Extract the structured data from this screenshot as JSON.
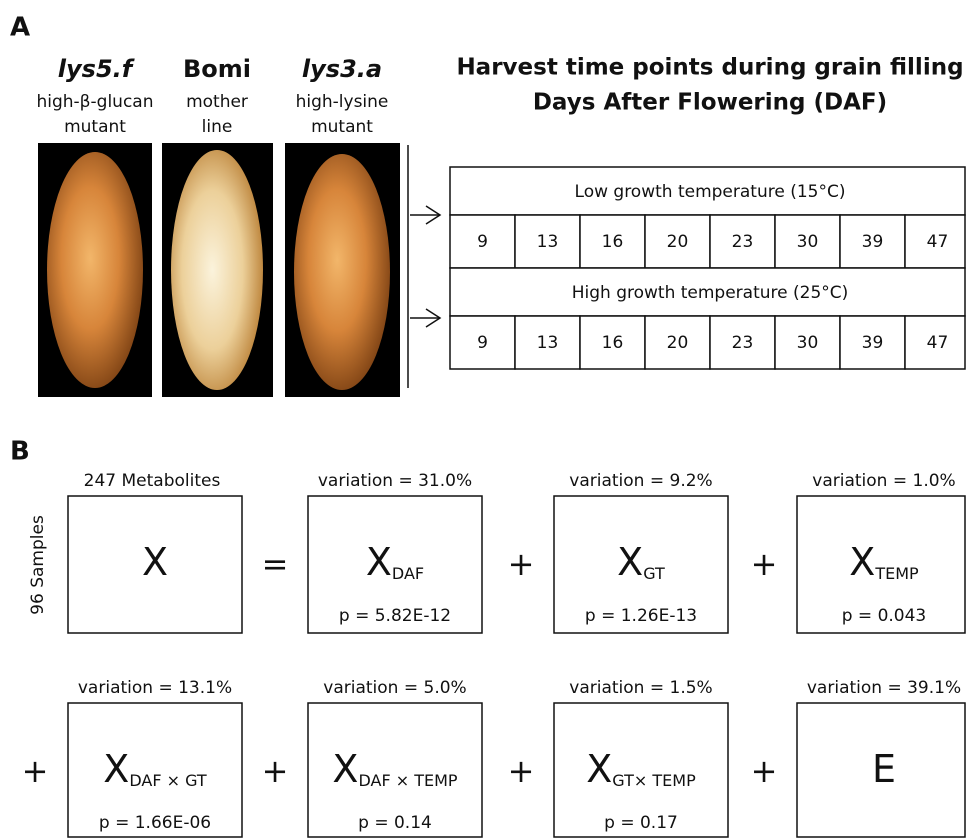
{
  "panel_a": {
    "label": "A",
    "genotypes": [
      {
        "name": "lys5.f",
        "desc": [
          "high-β-glucan",
          "mutant"
        ]
      },
      {
        "name": "Bomi",
        "desc": [
          "mother",
          "line"
        ]
      },
      {
        "name": "lys3.a",
        "desc": [
          "high-lysine",
          "mutant"
        ]
      }
    ],
    "title": [
      "Harvest time points during grain filling",
      "Days After Flowering (DAF)"
    ],
    "conditions": [
      {
        "label": "Low growth temperature (15°C)",
        "days": [
          9,
          13,
          16,
          20,
          23,
          30,
          39,
          47
        ]
      },
      {
        "label": "High growth temperature (25°C)",
        "days": [
          9,
          13,
          16,
          20,
          23,
          30,
          39,
          47
        ]
      }
    ]
  },
  "panel_b": {
    "label": "B",
    "columns_label": "247 Metabolites",
    "rows_label": "96 Samples",
    "terms": [
      {
        "symbol": "X"
      },
      {
        "operator": "=",
        "symbol": "X",
        "subscript": "DAF",
        "variation": "variation = 31.0%",
        "p": "p = 5.82E-12"
      },
      {
        "operator": "+",
        "symbol": "X",
        "subscript": "GT",
        "variation": "variation = 9.2%",
        "p": "p = 1.26E-13"
      },
      {
        "operator": "+",
        "symbol": "X",
        "subscript": "TEMP",
        "variation": "variation = 1.0%",
        "p": "p = 0.043"
      },
      {
        "operator": "+",
        "symbol": "X",
        "subscript": "DAF × GT",
        "variation": "variation = 13.1%",
        "p": "p = 1.66E-06"
      },
      {
        "operator": "+",
        "symbol": "X",
        "subscript": "DAF × TEMP",
        "variation": "variation = 5.0%",
        "p": "p = 0.14"
      },
      {
        "operator": "+",
        "symbol": "X",
        "subscript": "GT× TEMP",
        "variation": "variation = 1.5%",
        "p": "p = 0.17"
      },
      {
        "operator": "+",
        "symbol": "E",
        "variation": "variation = 39.1%"
      }
    ]
  }
}
